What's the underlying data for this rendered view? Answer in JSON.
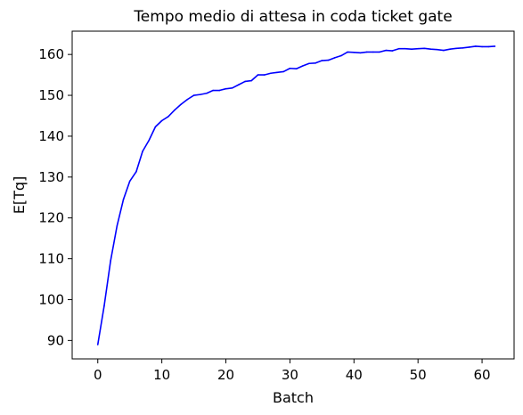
{
  "chart_data": {
    "type": "line",
    "title": "Tempo medio di attesa in coda ticket gate",
    "xlabel": "Batch",
    "ylabel": "E[Tq]",
    "xlim": [
      -4,
      65
    ],
    "ylim": [
      85.5,
      165.7
    ],
    "xticks": [
      0,
      10,
      20,
      30,
      40,
      50,
      60
    ],
    "yticks": [
      90,
      100,
      110,
      120,
      130,
      140,
      150,
      160
    ],
    "grid": false,
    "legend": "none",
    "series": [
      {
        "color": "#0000ff",
        "x": [
          0,
          1,
          2,
          3,
          4,
          5,
          6,
          7,
          8,
          9,
          10,
          11,
          12,
          13,
          14,
          15,
          16,
          17,
          18,
          19,
          20,
          21,
          22,
          23,
          24,
          25,
          26,
          27,
          28,
          29,
          30,
          31,
          32,
          33,
          34,
          35,
          36,
          37,
          38,
          39,
          40,
          41,
          42,
          43,
          44,
          45,
          46,
          47,
          48,
          49,
          50,
          51,
          52,
          53,
          54,
          55,
          56,
          57,
          58,
          59,
          60,
          61,
          62
        ],
        "y": [
          89,
          98.5,
          109.5,
          118,
          124.5,
          129,
          131.3,
          136.3,
          139,
          142.3,
          143.8,
          144.8,
          146.4,
          147.8,
          149,
          150,
          150.2,
          150.5,
          151.2,
          151.2,
          151.6,
          151.8,
          152.6,
          153.4,
          153.6,
          155,
          155,
          155.4,
          155.6,
          155.8,
          156.6,
          156.5,
          157.2,
          157.8,
          157.9,
          158.5,
          158.6,
          159.2,
          159.7,
          160.6,
          160.5,
          160.4,
          160.6,
          160.6,
          160.6,
          161,
          160.9,
          161.4,
          161.4,
          161.3,
          161.4,
          161.5,
          161.3,
          161.2,
          161,
          161.3,
          161.5,
          161.6,
          161.8,
          162,
          161.9,
          161.9,
          162
        ]
      }
    ]
  }
}
